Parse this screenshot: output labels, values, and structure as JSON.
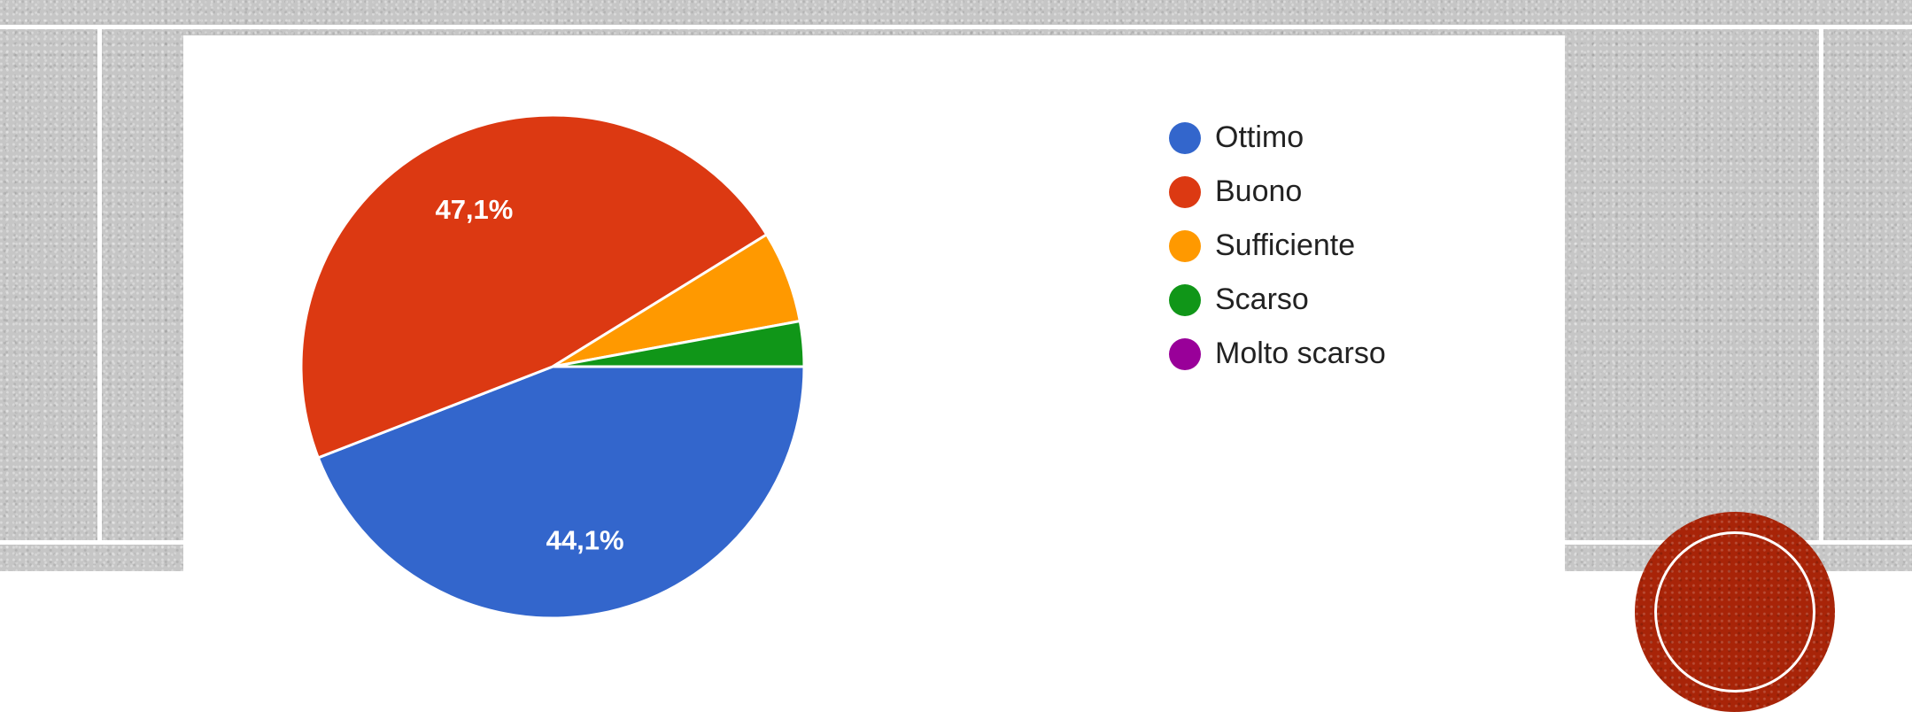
{
  "colors": {
    "Ottimo": "#3366cc",
    "Buono": "#dc3912",
    "Sufficiente": "#ff9900",
    "Scarso": "#109618",
    "Molto scarso": "#990099",
    "background_texture": "#c6c6c6",
    "badge": "#a82408"
  },
  "chart_data": {
    "type": "pie",
    "categories": [
      "Ottimo",
      "Buono",
      "Sufficiente",
      "Scarso",
      "Molto scarso"
    ],
    "values": [
      44.1,
      47.1,
      5.9,
      2.9,
      0
    ],
    "slice_labels": [
      "44,1%",
      "47,1%",
      "",
      "",
      ""
    ],
    "legend_placement": "right",
    "title": ""
  }
}
